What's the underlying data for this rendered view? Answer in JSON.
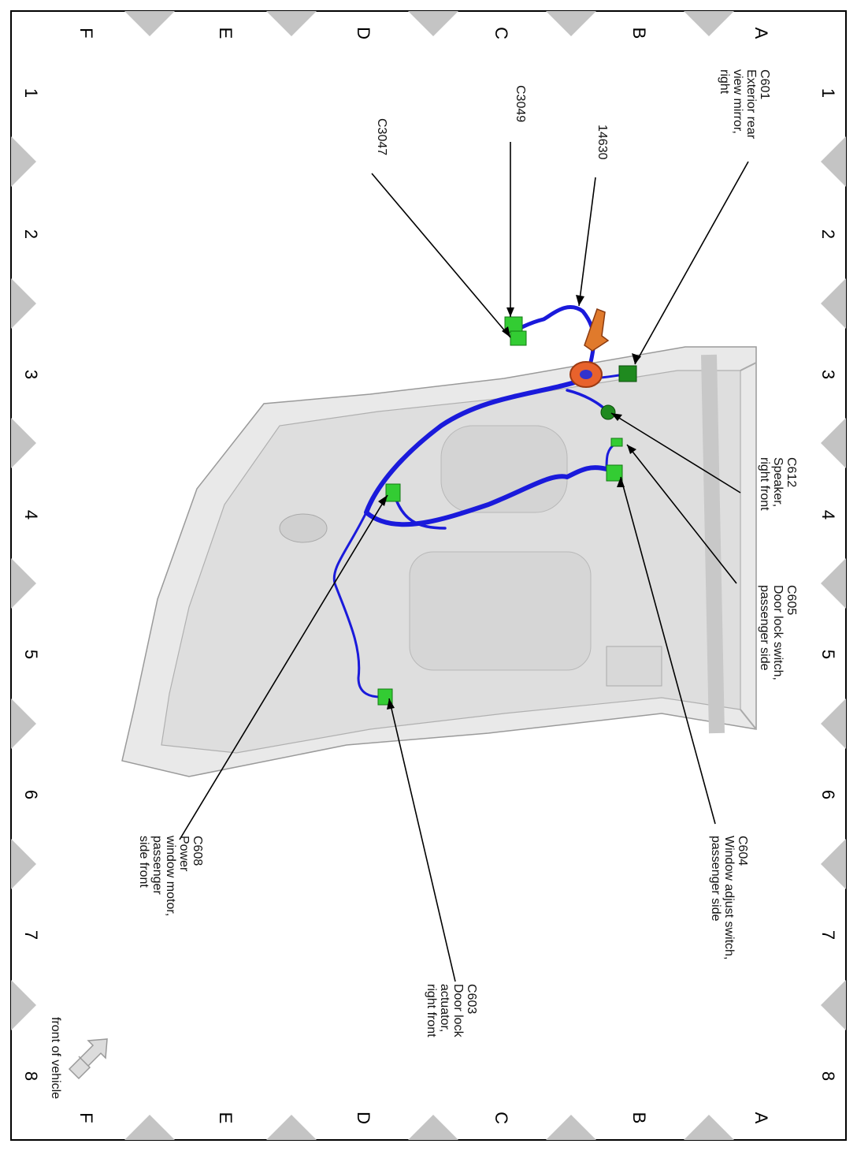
{
  "grid": {
    "letters": [
      "A",
      "B",
      "C",
      "D",
      "E",
      "F"
    ],
    "numbers": [
      "1",
      "2",
      "3",
      "4",
      "5",
      "6",
      "7",
      "8"
    ]
  },
  "callouts": [
    {
      "id": "c601",
      "lines": [
        "C601",
        "Exterior rear",
        "view mirror,",
        "right"
      ]
    },
    {
      "id": "p14630",
      "lines": [
        "14630"
      ]
    },
    {
      "id": "c3049",
      "lines": [
        "C3049"
      ]
    },
    {
      "id": "c3047",
      "lines": [
        "C3047"
      ]
    },
    {
      "id": "c612",
      "lines": [
        "C612",
        "Speaker,",
        "right front"
      ]
    },
    {
      "id": "c605",
      "lines": [
        "C605",
        "Door lock switch,",
        "passenger side"
      ]
    },
    {
      "id": "c604",
      "lines": [
        "C604",
        "Window adjust switch,",
        "passenger side"
      ]
    },
    {
      "id": "c608",
      "lines": [
        "C608",
        "Power",
        "window motor,",
        "passenger",
        "side front"
      ]
    },
    {
      "id": "c603",
      "lines": [
        "C603",
        "Door lock",
        "actuator,",
        "right front"
      ]
    }
  ],
  "orientation": {
    "label": "front of vehicle"
  },
  "colors": {
    "harness": "#1a1adb",
    "connector": "#33cc33",
    "connector_dark": "#1f8a1f",
    "grommet": "#e8622c",
    "door_panel": "#e8e8e8",
    "frame_marker": "#c4c4c4"
  }
}
